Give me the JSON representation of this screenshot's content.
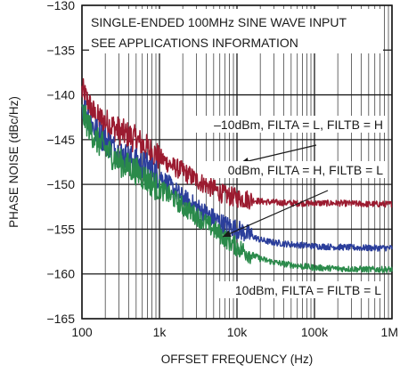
{
  "chart_data": {
    "type": "line",
    "xscale": "log",
    "xlim": [
      100,
      1000000
    ],
    "ylim": [
      -165,
      -130
    ],
    "grid": true,
    "xlabel": "OFFSET FREQUENCY (Hz)",
    "ylabel": "PHASE NOISE (dBc/Hz)",
    "x_ticks": [
      100,
      1000,
      10000,
      100000,
      1000000
    ],
    "x_tick_labels": [
      "100",
      "1k",
      "10k",
      "100k",
      "1M"
    ],
    "y_ticks": [
      -130,
      -135,
      -140,
      -145,
      -150,
      -155,
      -160,
      -165
    ],
    "y_tick_labels": [
      "−130",
      "−135",
      "−140",
      "−145",
      "−150",
      "−155",
      "−160",
      "−165"
    ],
    "annotations": [
      "SINGLE-ENDED 100MHz SINE WAVE INPUT",
      "SEE APPLICATIONS INFORMATION"
    ],
    "series": [
      {
        "name": "–10dBm, FILTA = L, FILTB = H",
        "color": "#9b1b30",
        "x": [
          100,
          150,
          200,
          300,
          500,
          700,
          1000,
          1500,
          2000,
          3000,
          5000,
          7000,
          10000,
          15000,
          20000,
          30000,
          50000,
          100000,
          200000,
          500000,
          1000000
        ],
        "y": [
          -139.5,
          -142.5,
          -143,
          -144,
          -145,
          -146,
          -147,
          -148,
          -148.5,
          -149.5,
          -150.5,
          -151.2,
          -151.5,
          -151.7,
          -151.9,
          -152,
          -152.1,
          -152.1,
          -152.1,
          -152.2,
          -152.2
        ]
      },
      {
        "name": "0dBm, FILTA = H, FILTB = L",
        "color": "#2b3e9b",
        "x": [
          100,
          150,
          200,
          300,
          500,
          700,
          1000,
          1500,
          2000,
          3000,
          5000,
          7000,
          10000,
          15000,
          20000,
          30000,
          50000,
          100000,
          200000,
          500000,
          1000000
        ],
        "y": [
          -141,
          -144,
          -145,
          -146.5,
          -147.5,
          -148,
          -149,
          -150.5,
          -151.5,
          -152.5,
          -153.8,
          -154.5,
          -155,
          -155.7,
          -156.2,
          -156.5,
          -156.7,
          -156.9,
          -157,
          -157.1,
          -157.1
        ]
      },
      {
        "name": "10dBm, FILTA = FILTB = L",
        "color": "#2a8a4a",
        "x": [
          100,
          150,
          200,
          300,
          500,
          700,
          1000,
          1500,
          2000,
          3000,
          5000,
          7000,
          10000,
          15000,
          20000,
          30000,
          50000,
          100000,
          200000,
          500000,
          1000000
        ],
        "y": [
          -142,
          -145,
          -146,
          -147.5,
          -148.5,
          -149.5,
          -150.5,
          -151.5,
          -152.5,
          -153.5,
          -155,
          -156,
          -157,
          -157.8,
          -158.3,
          -158.7,
          -159,
          -159.3,
          -159.4,
          -159.5,
          -159.5
        ]
      }
    ]
  }
}
